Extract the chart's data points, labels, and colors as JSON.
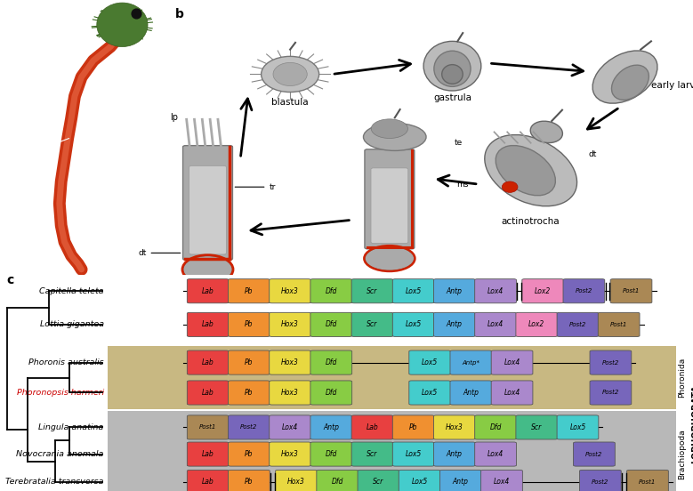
{
  "background_color": "#ffffff",
  "panel_a_bg": "#090909",
  "phoronida_bg": "#c8b882",
  "brachiopoda_bg": "#b8b8b8",
  "species": [
    "Capitella teleta",
    "Lottia gigantea",
    "Phoronis australis",
    "Phoronopsis harmeri",
    "Lingula anatina",
    "Novocrania anomala",
    "Terebratalia transversa"
  ],
  "species_colors": [
    "#000000",
    "#000000",
    "#000000",
    "#cc0000",
    "#000000",
    "#000000",
    "#000000"
  ],
  "gene_colors": {
    "Lab": "#e84040",
    "Pb": "#f09030",
    "Hox3": "#e8d840",
    "Dfd": "#88cc44",
    "Scr": "#44bb88",
    "Lox5": "#44cccc",
    "Antp": "#55aadd",
    "Antp*": "#55aadd",
    "Lox4": "#aa88cc",
    "Lox2": "#ee88bb",
    "Post2": "#7766bb",
    "Post1": "#aa8855"
  }
}
